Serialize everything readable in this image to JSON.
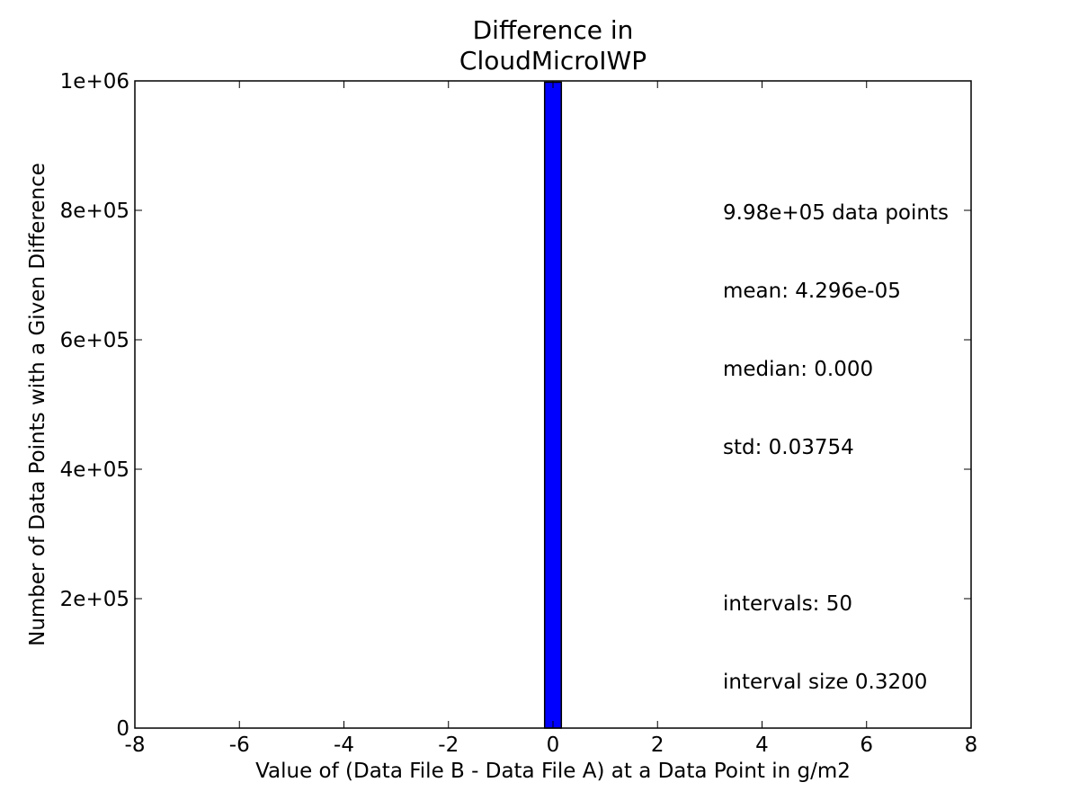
{
  "chart_data": {
    "type": "bar",
    "title_lines": [
      "Difference in",
      "CloudMicroIWP"
    ],
    "xlabel": "Value of (Data File B - Data File A) at a Data Point in g/m2",
    "ylabel": "Number of Data Points with a Given Difference",
    "xlim": [
      -8,
      8
    ],
    "ylim": [
      0,
      1000000
    ],
    "xticks": [
      {
        "value": -8,
        "label": "-8"
      },
      {
        "value": -6,
        "label": "-6"
      },
      {
        "value": -4,
        "label": "-4"
      },
      {
        "value": -2,
        "label": "-2"
      },
      {
        "value": 0,
        "label": "0"
      },
      {
        "value": 2,
        "label": "2"
      },
      {
        "value": 4,
        "label": "4"
      },
      {
        "value": 6,
        "label": "6"
      },
      {
        "value": 8,
        "label": "8"
      }
    ],
    "yticks": [
      {
        "value": 0,
        "label": "0"
      },
      {
        "value": 200000,
        "label": "2e+05"
      },
      {
        "value": 400000,
        "label": "4e+05"
      },
      {
        "value": 600000,
        "label": "6e+05"
      },
      {
        "value": 800000,
        "label": "8e+05"
      },
      {
        "value": 1000000,
        "label": "1e+06"
      }
    ],
    "bars": [
      {
        "x_start": -0.16,
        "x_end": 0.16,
        "count": 998000
      }
    ],
    "bar_color": "#0000ff",
    "grid": false,
    "annotation_lines": [
      "9.98e+05 data points",
      "mean: 4.296e-05",
      "median: 0.000",
      "std: 0.03754",
      "",
      "intervals: 50",
      "interval size 0.3200"
    ]
  }
}
